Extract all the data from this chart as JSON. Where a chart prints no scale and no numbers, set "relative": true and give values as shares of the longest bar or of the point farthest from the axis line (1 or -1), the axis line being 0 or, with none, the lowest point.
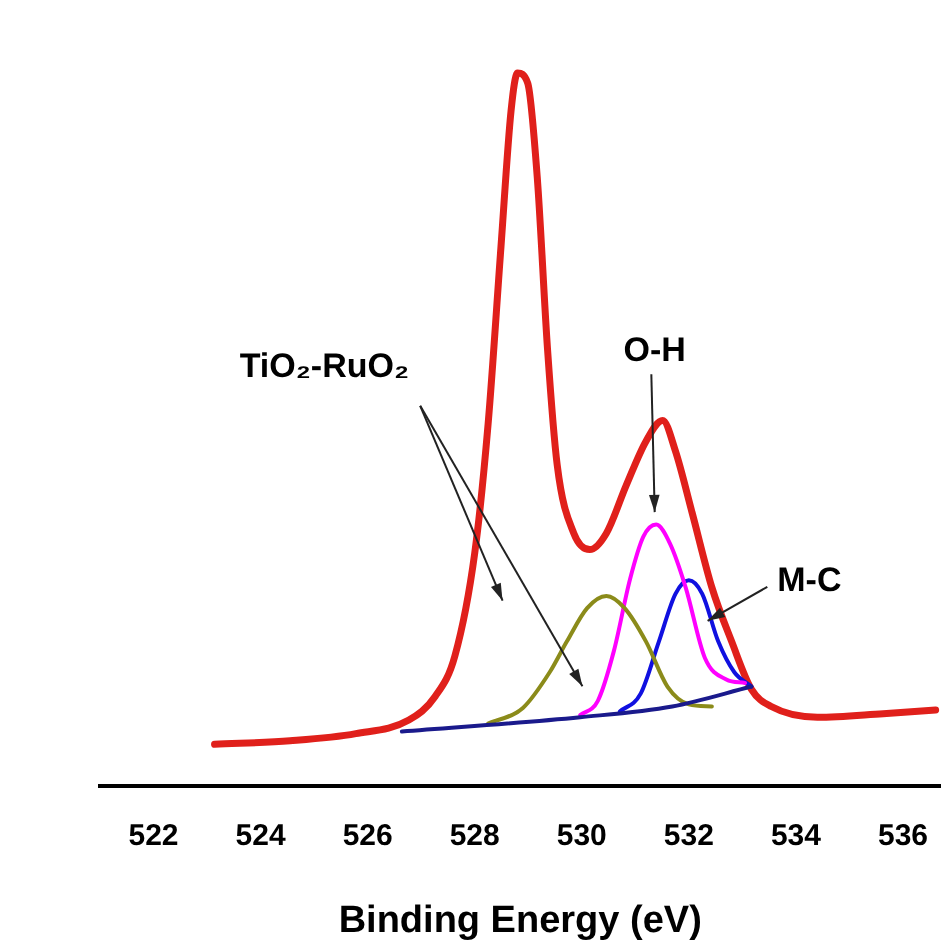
{
  "chart_data": {
    "type": "line",
    "xlabel": "Binding Energy (eV)",
    "relative": true,
    "xlim": [
      521,
      536.7
    ],
    "xticks": [
      522,
      524,
      526,
      528,
      530,
      532,
      534,
      536
    ],
    "grid": false,
    "legend": false,
    "marker": "none",
    "line_style": "solid",
    "series": [
      {
        "color": "#1a1a8c",
        "x": [
          526.64,
          529.97,
          531.69,
          533.17
        ],
        "values": [
          0.077,
          0.097,
          0.112,
          0.14
        ]
      },
      {
        "color": "#8b8b1a",
        "x": [
          528.25,
          528.9,
          529.4,
          529.72,
          530.1,
          530.46,
          530.8,
          531.2,
          531.6,
          532.0,
          532.43
        ],
        "values": [
          0.088,
          0.11,
          0.16,
          0.203,
          0.25,
          0.267,
          0.25,
          0.203,
          0.14,
          0.115,
          0.112
        ]
      },
      {
        "color": "#ff00ff",
        "x": [
          529.97,
          530.3,
          530.6,
          530.9,
          531.15,
          531.39,
          531.65,
          531.94,
          532.3,
          532.7,
          533.05
        ],
        "values": [
          0.1,
          0.12,
          0.19,
          0.29,
          0.35,
          0.367,
          0.34,
          0.279,
          0.18,
          0.15,
          0.145
        ]
      },
      {
        "color": "#1010e0",
        "x": [
          530.71,
          531.1,
          531.44,
          531.75,
          532.0,
          532.25,
          532.55,
          532.85,
          533.17
        ],
        "values": [
          0.105,
          0.13,
          0.203,
          0.27,
          0.289,
          0.27,
          0.203,
          0.16,
          0.14
        ]
      },
      {
        "color": "#e0201b",
        "x": [
          523.14,
          524.55,
          525.78,
          526.77,
          527.26,
          527.63,
          528.0,
          528.25,
          528.49,
          528.68,
          528.8,
          528.99,
          529.17,
          529.36,
          529.54,
          529.85,
          530.15,
          530.46,
          530.83,
          531.2,
          531.51,
          531.75,
          532.06,
          532.43,
          532.8,
          533.17,
          533.54,
          534.4,
          535.63,
          536.61
        ],
        "values": [
          0.059,
          0.064,
          0.074,
          0.093,
          0.126,
          0.183,
          0.327,
          0.508,
          0.756,
          0.948,
          1.0,
          0.986,
          0.852,
          0.613,
          0.451,
          0.355,
          0.332,
          0.355,
          0.422,
          0.484,
          0.513,
          0.47,
          0.384,
          0.279,
          0.203,
          0.136,
          0.112,
          0.097,
          0.102,
          0.107
        ]
      }
    ],
    "annotations": [
      "TiO₂-RuO₂",
      "O-H",
      "M-C"
    ]
  }
}
